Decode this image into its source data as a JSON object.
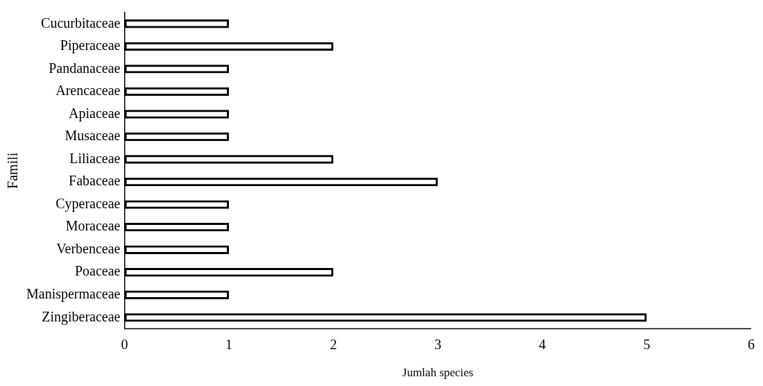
{
  "chart_data": {
    "type": "bar",
    "orientation": "horizontal",
    "xlabel": "Jumlah species",
    "ylabel": "Famili",
    "categories": [
      "Cucurbitaceae",
      "Piperaceae",
      "Pandanaceae",
      "Arencaceae",
      "Apiaceae",
      "Musaceae",
      "Liliaceae",
      "Fabaceae",
      "Cyperaceae",
      "Moraceae",
      "Verbenceae",
      "Poaceae",
      "Manispermaceae",
      "Zingiberaceae"
    ],
    "values": [
      1,
      2,
      1,
      1,
      1,
      1,
      2,
      3,
      1,
      1,
      1,
      2,
      1,
      5
    ],
    "color": "#000000",
    "xlim": [
      0,
      6
    ],
    "xticks": [
      0,
      1,
      2,
      3,
      4,
      5,
      6
    ],
    "grid": false,
    "legend": false
  }
}
